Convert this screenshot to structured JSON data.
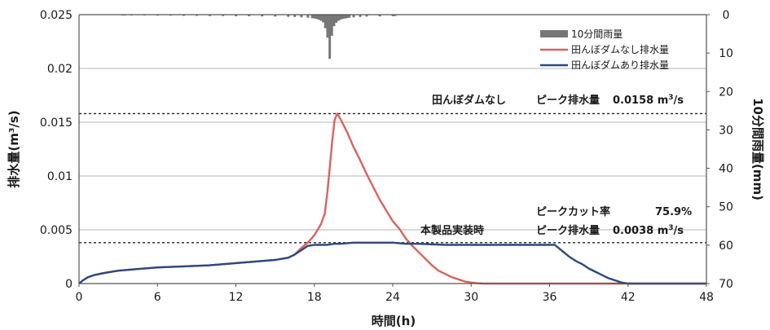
{
  "chart_data": {
    "type": "line",
    "xlabel": "時間(h)",
    "ylabel": "排水量(m³/s)",
    "y2label": "10分間雨量(mm)",
    "xlim": [
      0,
      48
    ],
    "ylim": [
      0,
      0.025
    ],
    "y2lim": [
      0,
      70
    ],
    "y2_inverted": true,
    "x_ticks": [
      0,
      6,
      12,
      18,
      24,
      30,
      36,
      42,
      48
    ],
    "y_ticks": [
      "0",
      "0.005",
      "0.01",
      "0.015",
      "0.02",
      "0.025"
    ],
    "y2_ticks": [
      "0",
      "10",
      "20",
      "30",
      "40",
      "50",
      "60",
      "70"
    ],
    "grid": "horizontal",
    "legend_position": "top-right",
    "legend": [
      "10分間雨量",
      "田んぼダムなし排水量",
      "田んぼダムあり排水量"
    ],
    "colors": {
      "rain": "#777777",
      "without_dam": "#d9635e",
      "with_dam": "#2b4a7e",
      "grid": "#b5b5b5",
      "axis": "#555555"
    },
    "series": [
      {
        "name": "10分間雨量",
        "kind": "bar-inverted",
        "axis": "y2",
        "points": [
          [
            3.33,
            0.2
          ],
          [
            3.5,
            0.2
          ],
          [
            4,
            0.2
          ],
          [
            5,
            0.2
          ],
          [
            6,
            0.25
          ],
          [
            7,
            0.25
          ],
          [
            8,
            0.3
          ],
          [
            9,
            0.3
          ],
          [
            10,
            0.35
          ],
          [
            11,
            0.35
          ],
          [
            12,
            0.4
          ],
          [
            13,
            0.4
          ],
          [
            14,
            0.45
          ],
          [
            15,
            0.5
          ],
          [
            16,
            0.55
          ],
          [
            16.5,
            0.6
          ],
          [
            17,
            0.7
          ],
          [
            17.5,
            0.8
          ],
          [
            17.83,
            0.9
          ],
          [
            18,
            1.0
          ],
          [
            18.17,
            1.1
          ],
          [
            18.33,
            1.3
          ],
          [
            18.5,
            1.6
          ],
          [
            18.67,
            2.0
          ],
          [
            18.83,
            3.5
          ],
          [
            19,
            6.0
          ],
          [
            19.17,
            11.5
          ],
          [
            19.33,
            5.5
          ],
          [
            19.5,
            3.0
          ],
          [
            19.67,
            2.1
          ],
          [
            19.83,
            1.6
          ],
          [
            20,
            1.3
          ],
          [
            20.17,
            1.1
          ],
          [
            20.33,
            1.0
          ],
          [
            20.5,
            0.9
          ],
          [
            20.67,
            0.8
          ],
          [
            21,
            0.7
          ],
          [
            21.5,
            0.6
          ],
          [
            22,
            0.5
          ],
          [
            23,
            0.45
          ],
          [
            24,
            0.4
          ],
          [
            24.17,
            0.35
          ]
        ]
      },
      {
        "name": "田んぼダムなし排水量",
        "kind": "line",
        "axis": "y",
        "points": [
          [
            0,
            0
          ],
          [
            0.3,
            0.0003
          ],
          [
            0.7,
            0.0006
          ],
          [
            1.2,
            0.0008
          ],
          [
            2,
            0.001
          ],
          [
            3,
            0.0012
          ],
          [
            4,
            0.0013
          ],
          [
            6,
            0.0015
          ],
          [
            8,
            0.0016
          ],
          [
            10,
            0.0017
          ],
          [
            12,
            0.0019
          ],
          [
            14,
            0.0021
          ],
          [
            15,
            0.0022
          ],
          [
            16,
            0.0024
          ],
          [
            16.5,
            0.0027
          ],
          [
            17,
            0.0033
          ],
          [
            17.5,
            0.0038
          ],
          [
            18,
            0.0045
          ],
          [
            18.5,
            0.0055
          ],
          [
            18.8,
            0.0065
          ],
          [
            19.0,
            0.0085
          ],
          [
            19.2,
            0.011
          ],
          [
            19.35,
            0.013
          ],
          [
            19.55,
            0.0152
          ],
          [
            19.75,
            0.0158
          ],
          [
            20,
            0.0153
          ],
          [
            20.5,
            0.0141
          ],
          [
            21,
            0.0127
          ],
          [
            21.5,
            0.0115
          ],
          [
            22,
            0.0102
          ],
          [
            22.5,
            0.009
          ],
          [
            23,
            0.0078
          ],
          [
            23.5,
            0.0068
          ],
          [
            24,
            0.0058
          ],
          [
            24.5,
            0.0051
          ],
          [
            25,
            0.0042
          ],
          [
            25.5,
            0.0035
          ],
          [
            26,
            0.0029
          ],
          [
            26.5,
            0.0023
          ],
          [
            27,
            0.0017
          ],
          [
            27.5,
            0.0012
          ],
          [
            28,
            0.0009
          ],
          [
            28.5,
            0.0006
          ],
          [
            29,
            0.0004
          ],
          [
            29.5,
            0.0002
          ],
          [
            30,
            0.0001
          ],
          [
            30.5,
            3e-05
          ],
          [
            31,
            0
          ],
          [
            48,
            0
          ]
        ]
      },
      {
        "name": "田んぼダムあり排水量",
        "kind": "line",
        "axis": "y",
        "points": [
          [
            0,
            0
          ],
          [
            0.3,
            0.0003
          ],
          [
            0.7,
            0.0006
          ],
          [
            1.2,
            0.0008
          ],
          [
            2,
            0.001
          ],
          [
            3,
            0.0012
          ],
          [
            4,
            0.0013
          ],
          [
            6,
            0.0015
          ],
          [
            8,
            0.0016
          ],
          [
            10,
            0.0017
          ],
          [
            12,
            0.0019
          ],
          [
            14,
            0.0021
          ],
          [
            15,
            0.0022
          ],
          [
            16,
            0.0024
          ],
          [
            16.5,
            0.0027
          ],
          [
            17,
            0.0031
          ],
          [
            17.5,
            0.0035
          ],
          [
            18,
            0.0036
          ],
          [
            19,
            0.0036
          ],
          [
            19.5,
            0.0037
          ],
          [
            20,
            0.0037
          ],
          [
            21,
            0.0038
          ],
          [
            22,
            0.0038
          ],
          [
            23,
            0.0038
          ],
          [
            24,
            0.0038
          ],
          [
            25,
            0.0037
          ],
          [
            26,
            0.0037
          ],
          [
            28,
            0.0036
          ],
          [
            30,
            0.0036
          ],
          [
            32,
            0.0036
          ],
          [
            34,
            0.0036
          ],
          [
            36,
            0.0036
          ],
          [
            36.4,
            0.0036
          ],
          [
            37,
            0.003
          ],
          [
            37.5,
            0.0025
          ],
          [
            38,
            0.0021
          ],
          [
            38.5,
            0.0018
          ],
          [
            39,
            0.0014
          ],
          [
            39.5,
            0.0011
          ],
          [
            40,
            0.0008
          ],
          [
            40.5,
            0.0005
          ],
          [
            41,
            0.0003
          ],
          [
            41.5,
            0.0001
          ],
          [
            42,
            0
          ],
          [
            48,
            0
          ]
        ]
      }
    ],
    "reference_lines": [
      {
        "name": "peak-without",
        "y": 0.0158
      },
      {
        "name": "peak-with",
        "y": 0.0038
      }
    ],
    "annotations": {
      "without_label": "田んぼダムなし",
      "without_peak_label": "ピーク排水量",
      "without_peak_value": "0.0158",
      "with_label": "本製品実装時",
      "with_peak_label": "ピーク排水量",
      "with_peak_value": "0.0038",
      "unit_base": "m",
      "unit_sup": "3",
      "unit_tail": "/s",
      "cut_label": "ピークカット率",
      "cut_value": "75.9%"
    }
  }
}
